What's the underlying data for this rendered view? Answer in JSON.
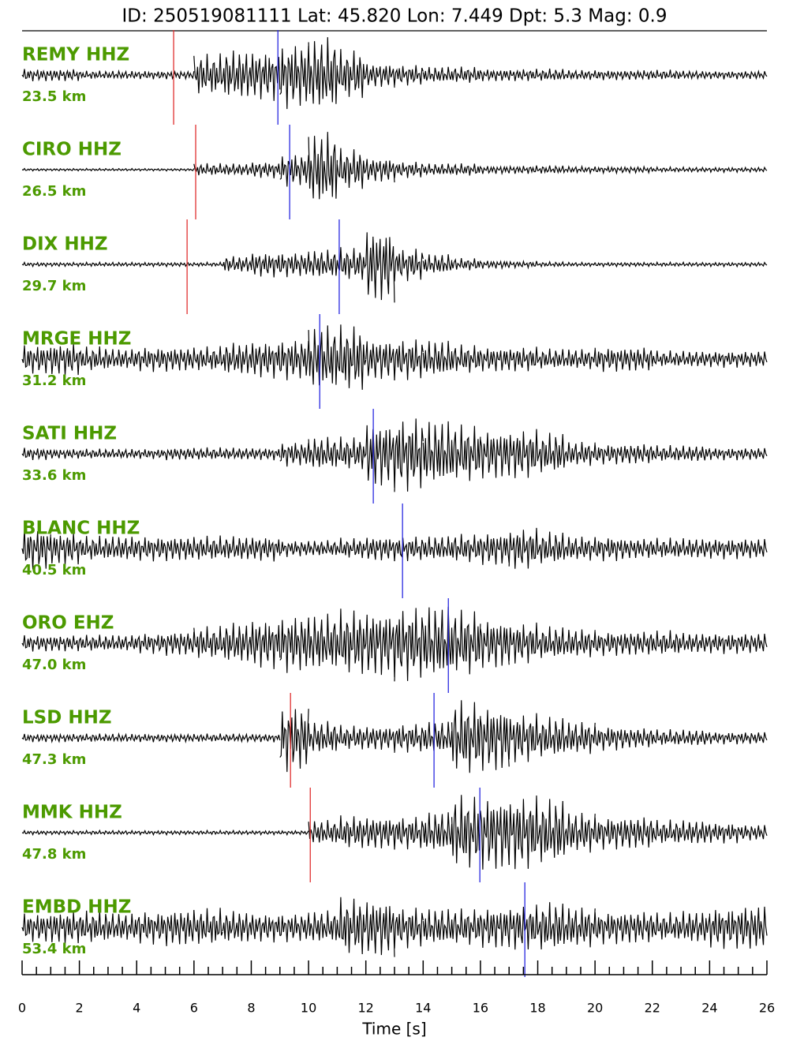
{
  "chart_data": {
    "type": "seismogram",
    "title": "ID: 250519081111 Lat:  45.820 Lon:   7.449 Dpt:     5.3 Mag:   0.9",
    "x_label": "Time [s]",
    "xlim": [
      0,
      26
    ],
    "xticks": [
      0,
      2,
      4,
      6,
      8,
      10,
      12,
      14,
      16,
      18,
      20,
      22,
      24,
      26
    ],
    "xminorticks": [
      0.5,
      1,
      1.5,
      2.5,
      3,
      3.5,
      4.5,
      5,
      5.5,
      6.5,
      7,
      7.5,
      8.5,
      9,
      9.5,
      10.5,
      11,
      11.5,
      12.5,
      13,
      13.5,
      14.5,
      15,
      15.5,
      16.5,
      17,
      17.5,
      18.5,
      19,
      19.5,
      20.5,
      21,
      21.5,
      22.5,
      23,
      23.5,
      24.5,
      25,
      25.5
    ],
    "label_color": "#4c9a00",
    "trace_color": "#000000",
    "p_color": "#e03030",
    "s_color": "#2a2ae0",
    "traces": [
      {
        "name": "REMY HHZ",
        "distance": "23.5 km",
        "p_pick": 5.29,
        "s_pick": 8.93,
        "envelope": [
          0.15,
          0.15,
          0.1,
          0.1,
          0.1,
          0.1,
          0.5,
          0.6,
          0.6,
          0.8,
          0.9,
          0.6,
          0.3,
          0.25,
          0.2,
          0.2,
          0.15,
          0.15,
          0.15,
          0.12,
          0.12,
          0.12,
          0.12,
          0.1,
          0.1,
          0.1
        ]
      },
      {
        "name": "CIRO HHZ",
        "distance": "26.5 km",
        "p_pick": 6.06,
        "s_pick": 9.34,
        "envelope": [
          0.03,
          0.03,
          0.03,
          0.03,
          0.03,
          0.03,
          0.15,
          0.15,
          0.2,
          0.4,
          0.9,
          0.5,
          0.3,
          0.2,
          0.15,
          0.15,
          0.1,
          0.1,
          0.1,
          0.08,
          0.08,
          0.08,
          0.06,
          0.06,
          0.06,
          0.06
        ]
      },
      {
        "name": "DIX HHZ",
        "distance": "29.7 km",
        "p_pick": 5.76,
        "s_pick": 11.07,
        "envelope": [
          0.05,
          0.05,
          0.05,
          0.05,
          0.05,
          0.05,
          0.05,
          0.2,
          0.3,
          0.3,
          0.35,
          0.4,
          0.9,
          0.4,
          0.25,
          0.15,
          0.1,
          0.08,
          0.06,
          0.05,
          0.05,
          0.05,
          0.05,
          0.05,
          0.05,
          0.05
        ]
      },
      {
        "name": "MRGE HHZ",
        "distance": "31.2 km",
        "p_pick": null,
        "s_pick": 10.39,
        "envelope": [
          0.35,
          0.4,
          0.3,
          0.25,
          0.3,
          0.3,
          0.3,
          0.4,
          0.45,
          0.5,
          0.8,
          0.8,
          0.5,
          0.5,
          0.45,
          0.35,
          0.3,
          0.3,
          0.25,
          0.25,
          0.3,
          0.3,
          0.2,
          0.2,
          0.2,
          0.2
        ]
      },
      {
        "name": "SATI HHZ",
        "distance": "33.6 km",
        "p_pick": null,
        "s_pick": 12.26,
        "envelope": [
          0.15,
          0.12,
          0.12,
          0.12,
          0.12,
          0.15,
          0.15,
          0.15,
          0.15,
          0.3,
          0.4,
          0.4,
          0.8,
          0.9,
          0.8,
          0.7,
          0.6,
          0.6,
          0.5,
          0.3,
          0.25,
          0.25,
          0.2,
          0.2,
          0.15,
          0.15
        ]
      },
      {
        "name": "BLANC HHZ",
        "distance": "40.5 km",
        "p_pick": null,
        "s_pick": 13.28,
        "envelope": [
          0.5,
          0.4,
          0.3,
          0.3,
          0.3,
          0.3,
          0.3,
          0.3,
          0.3,
          0.2,
          0.2,
          0.25,
          0.3,
          0.3,
          0.3,
          0.35,
          0.4,
          0.5,
          0.4,
          0.3,
          0.3,
          0.25,
          0.25,
          0.25,
          0.25,
          0.25
        ]
      },
      {
        "name": "ORO EHZ",
        "distance": "47.0 km",
        "p_pick": null,
        "s_pick": 14.88,
        "envelope": [
          0.2,
          0.2,
          0.2,
          0.2,
          0.25,
          0.3,
          0.4,
          0.5,
          0.6,
          0.7,
          0.7,
          0.8,
          0.8,
          0.9,
          0.9,
          0.8,
          0.6,
          0.5,
          0.4,
          0.35,
          0.3,
          0.3,
          0.3,
          0.25,
          0.25,
          0.25
        ]
      },
      {
        "name": "LSD HHZ",
        "distance": "47.3 km",
        "p_pick": 9.37,
        "s_pick": 14.38,
        "envelope": [
          0.1,
          0.1,
          0.1,
          0.1,
          0.1,
          0.1,
          0.1,
          0.1,
          0.1,
          0.8,
          0.4,
          0.3,
          0.3,
          0.35,
          0.4,
          0.9,
          0.8,
          0.6,
          0.5,
          0.4,
          0.3,
          0.25,
          0.2,
          0.2,
          0.15,
          0.15
        ]
      },
      {
        "name": "MMK HHZ",
        "distance": "47.8 km",
        "p_pick": 10.06,
        "s_pick": 15.98,
        "envelope": [
          0.05,
          0.05,
          0.05,
          0.05,
          0.05,
          0.05,
          0.05,
          0.05,
          0.05,
          0.05,
          0.3,
          0.4,
          0.4,
          0.4,
          0.5,
          0.9,
          0.9,
          0.9,
          0.8,
          0.5,
          0.4,
          0.4,
          0.3,
          0.3,
          0.25,
          0.2
        ]
      },
      {
        "name": "EMBD HHZ",
        "distance": "53.4 km",
        "p_pick": null,
        "s_pick": 17.55,
        "envelope": [
          0.35,
          0.4,
          0.4,
          0.35,
          0.4,
          0.45,
          0.45,
          0.4,
          0.35,
          0.35,
          0.4,
          0.7,
          0.7,
          0.5,
          0.45,
          0.45,
          0.5,
          0.55,
          0.6,
          0.5,
          0.4,
          0.4,
          0.35,
          0.4,
          0.5,
          0.55
        ]
      }
    ]
  }
}
